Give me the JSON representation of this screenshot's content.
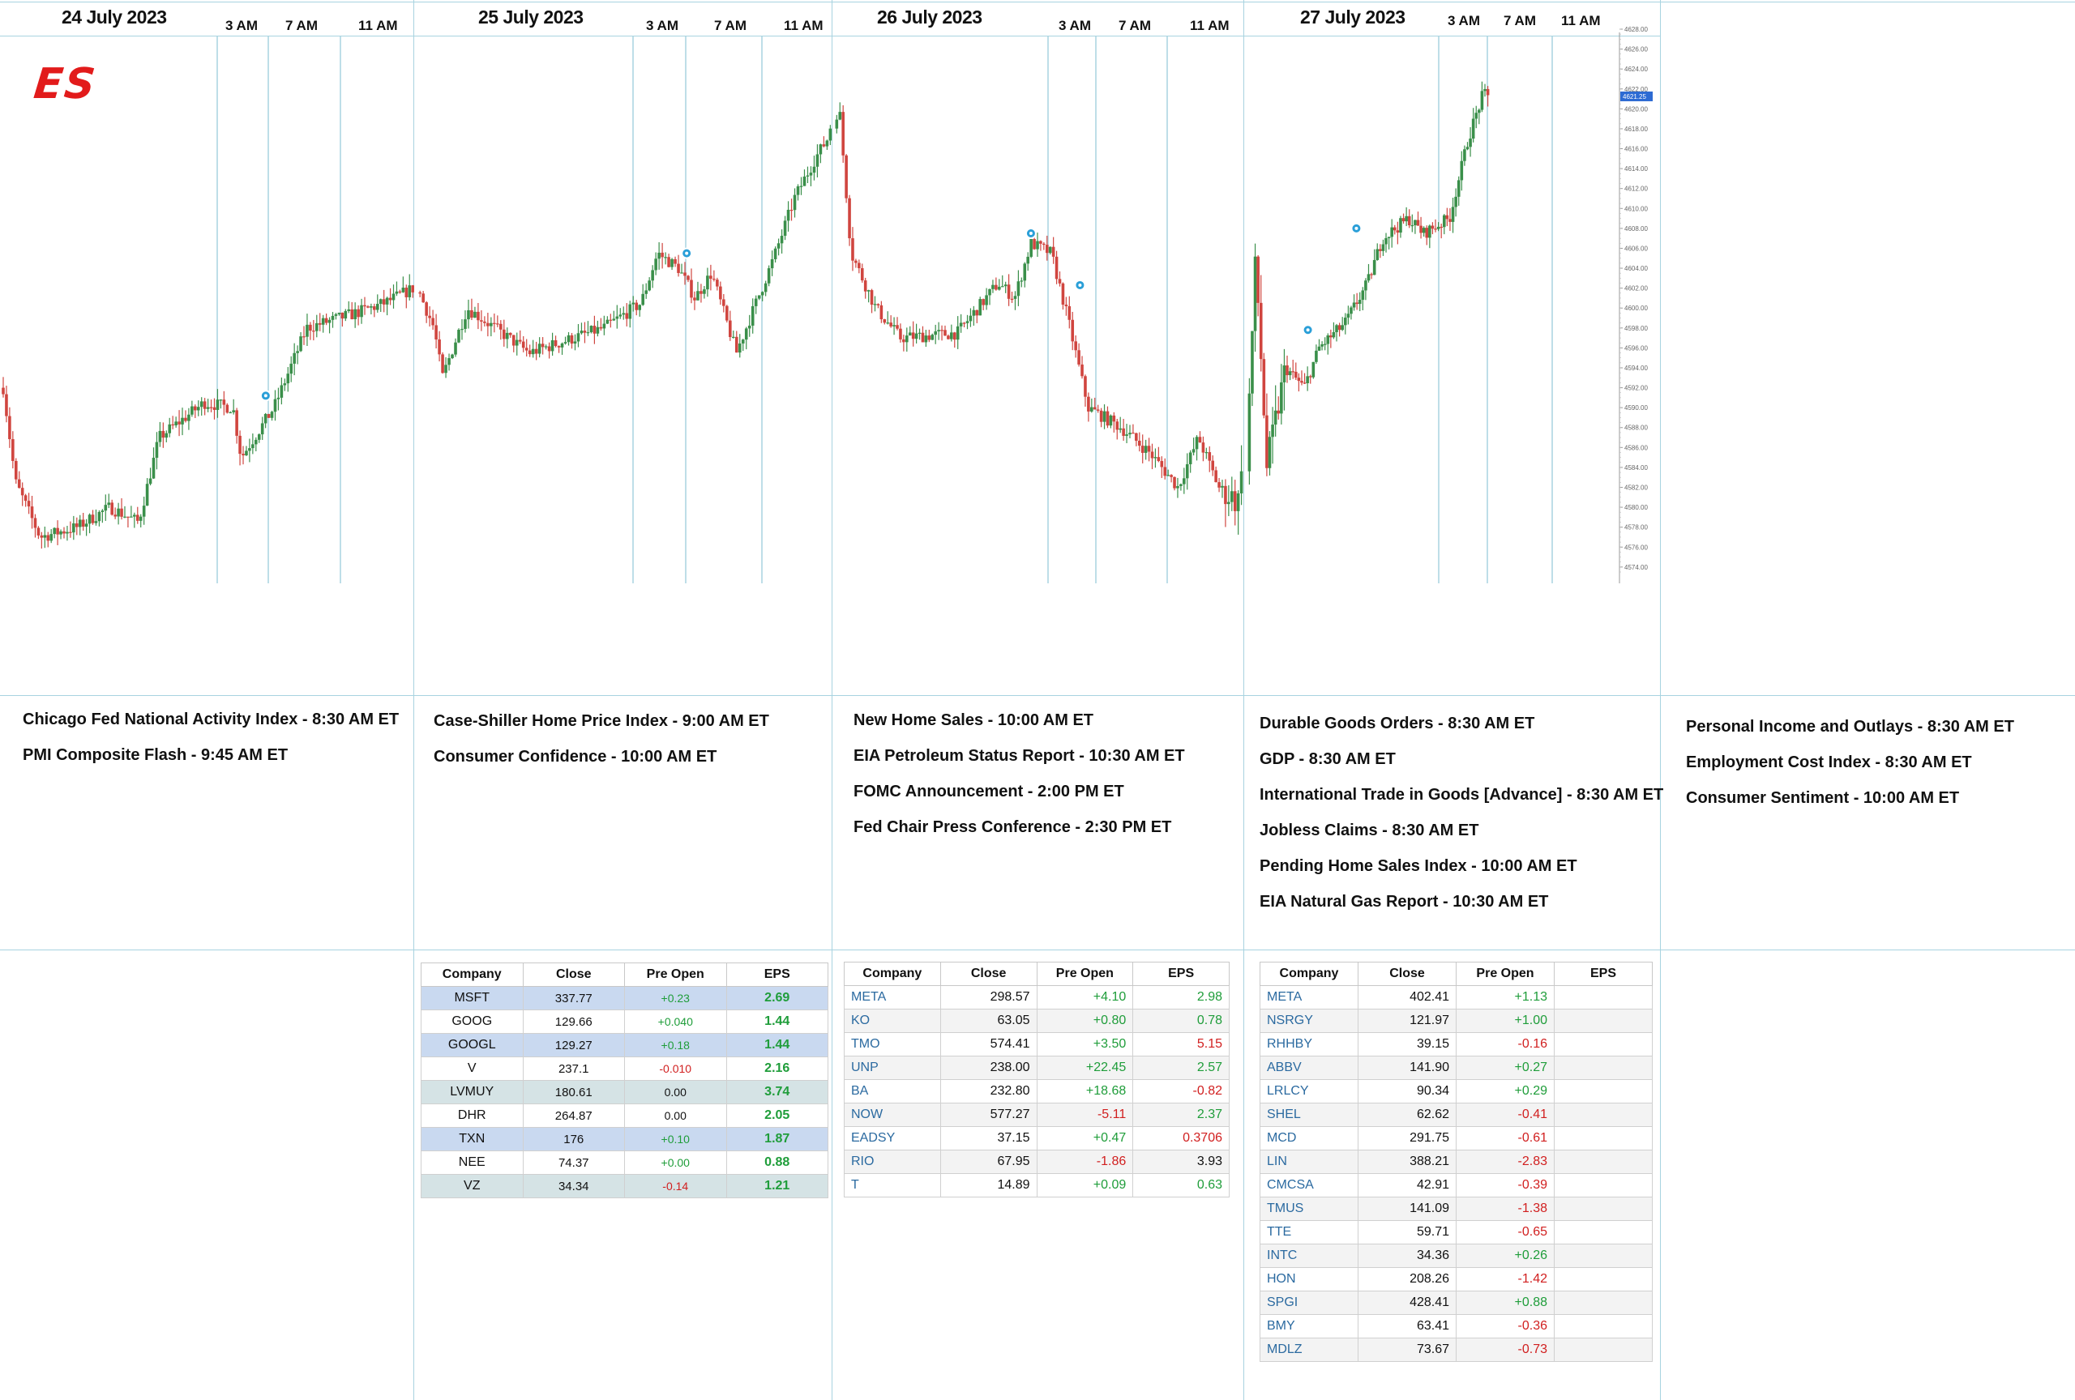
{
  "logo": "ES",
  "days": [
    {
      "label": "24 July 2023",
      "times": [
        "3 AM",
        "7 AM",
        "11 AM"
      ]
    },
    {
      "label": "25 July 2023",
      "times": [
        "3 AM",
        "7 AM",
        "11 AM"
      ]
    },
    {
      "label": "26 July 2023",
      "times": [
        "3 AM",
        "7 AM",
        "11 AM"
      ]
    },
    {
      "label": "27 July 2023",
      "times": [
        "3 AM",
        "7 AM",
        "11 AM"
      ]
    }
  ],
  "events": [
    [
      "Chicago Fed National Activity Index -  8:30 AM ET",
      "PMI Composite Flash - 9:45 AM ET"
    ],
    [
      "Case-Shiller Home Price Index - 9:00 AM ET",
      "Consumer Confidence - 10:00 AM ET"
    ],
    [
      "New Home Sales - 10:00 AM ET",
      "EIA Petroleum Status Report - 10:30 AM ET",
      "FOMC Announcement - 2:00 PM ET",
      "Fed Chair Press Conference - 2:30 PM ET"
    ],
    [
      "Durable Goods Orders - 8:30 AM ET",
      "GDP - 8:30 AM ET",
      "International Trade in Goods [Advance] - 8:30 AM ET",
      "Jobless Claims - 8:30 AM ET",
      "Pending Home Sales Index - 10:00 AM ET",
      "EIA Natural Gas Report - 10:30 AM ET"
    ],
    [
      "Personal Income and Outlays - 8:30 AM ET",
      "Employment Cost Index - 8:30 AM ET",
      "Consumer Sentiment - 10:00 AM ET"
    ]
  ],
  "tables": {
    "headers": [
      "Company",
      "Close",
      "Pre Open",
      "EPS"
    ],
    "day25": [
      {
        "company": "MSFT",
        "close": "337.77",
        "pre": "+0.23",
        "eps": "2.69"
      },
      {
        "company": "GOOG",
        "close": "129.66",
        "pre": "+0.040",
        "eps": "1.44"
      },
      {
        "company": "GOOGL",
        "close": "129.27",
        "pre": "+0.18",
        "eps": "1.44"
      },
      {
        "company": "V",
        "close": "237.1",
        "pre": "-0.010",
        "eps": "2.16"
      },
      {
        "company": "LVMUY",
        "close": "180.61",
        "pre": "0.00",
        "eps": "3.74"
      },
      {
        "company": "DHR",
        "close": "264.87",
        "pre": "0.00",
        "eps": "2.05"
      },
      {
        "company": "TXN",
        "close": "176",
        "pre": "+0.10",
        "eps": "1.87"
      },
      {
        "company": "NEE",
        "close": "74.37",
        "pre": "+0.00",
        "eps": "0.88"
      },
      {
        "company": "VZ",
        "close": "34.34",
        "pre": "-0.14",
        "eps": "1.21"
      }
    ],
    "day26": [
      {
        "company": "META",
        "close": "298.57",
        "pre": "+4.10",
        "eps": "2.98"
      },
      {
        "company": "KO",
        "close": "63.05",
        "pre": "+0.80",
        "eps": "0.78"
      },
      {
        "company": "TMO",
        "close": "574.41",
        "pre": "+3.50",
        "eps": "5.15"
      },
      {
        "company": "UNP",
        "close": "238.00",
        "pre": "+22.45",
        "eps": "2.57"
      },
      {
        "company": "BA",
        "close": "232.80",
        "pre": "+18.68",
        "eps": "-0.82"
      },
      {
        "company": "NOW",
        "close": "577.27",
        "pre": "-5.11",
        "eps": "2.37"
      },
      {
        "company": "EADSY",
        "close": "37.15",
        "pre": "+0.47",
        "eps": "0.3706"
      },
      {
        "company": "RIO",
        "close": "67.95",
        "pre": "-1.86",
        "eps": "3.93"
      },
      {
        "company": "T",
        "close": "14.89",
        "pre": "+0.09",
        "eps": "0.63"
      }
    ],
    "day27": [
      {
        "company": "META",
        "close": "402.41",
        "pre": "+1.13",
        "eps": ""
      },
      {
        "company": "NSRGY",
        "close": "121.97",
        "pre": "+1.00",
        "eps": ""
      },
      {
        "company": "RHHBY",
        "close": "39.15",
        "pre": "-0.16",
        "eps": ""
      },
      {
        "company": "ABBV",
        "close": "141.90",
        "pre": "+0.27",
        "eps": ""
      },
      {
        "company": "LRLCY",
        "close": "90.34",
        "pre": "+0.29",
        "eps": ""
      },
      {
        "company": "SHEL",
        "close": "62.62",
        "pre": "-0.41",
        "eps": ""
      },
      {
        "company": "MCD",
        "close": "291.75",
        "pre": "-0.61",
        "eps": ""
      },
      {
        "company": "LIN",
        "close": "388.21",
        "pre": "-2.83",
        "eps": ""
      },
      {
        "company": "CMCSA",
        "close": "42.91",
        "pre": "-0.39",
        "eps": ""
      },
      {
        "company": "TMUS",
        "close": "141.09",
        "pre": "-1.38",
        "eps": ""
      },
      {
        "company": "TTE",
        "close": "59.71",
        "pre": "-0.65",
        "eps": ""
      },
      {
        "company": "INTC",
        "close": "34.36",
        "pre": "+0.26",
        "eps": ""
      },
      {
        "company": "HON",
        "close": "208.26",
        "pre": "-1.42",
        "eps": ""
      },
      {
        "company": "SPGI",
        "close": "428.41",
        "pre": "+0.88",
        "eps": ""
      },
      {
        "company": "BMY",
        "close": "63.41",
        "pre": "-0.36",
        "eps": ""
      },
      {
        "company": "MDLZ",
        "close": "73.67",
        "pre": "-0.73",
        "eps": ""
      }
    ]
  },
  "colors": {
    "up": "#3a8f4a",
    "down": "#d0453f",
    "grid": "#a8d3e0",
    "marker": "#2a9fd8"
  },
  "chart_data": {
    "type": "candlestick",
    "title": "",
    "y_ticks": [
      "4574.00",
      "4576.00",
      "4578.00",
      "4580.00",
      "4582.00",
      "4584.00",
      "4586.00",
      "4588.00",
      "4590.00",
      "4592.00",
      "4594.00",
      "4596.00",
      "4598.00",
      "4600.00",
      "4602.00",
      "4604.00",
      "4606.00",
      "4608.00",
      "4610.00",
      "4612.00",
      "4614.00",
      "4616.00",
      "4618.00",
      "4620.00",
      "4622.00",
      "4624.00",
      "4626.00",
      "4628.00"
    ],
    "ylim": [
      4573.5,
      4628
    ],
    "last_price": "4621.25",
    "x_axis": "time (ET), 24–27 July 2023",
    "path_anchors": [
      {
        "t": 0.0,
        "p": 4592.0
      },
      {
        "t": 0.03,
        "p": 4582.5
      },
      {
        "t": 0.09,
        "p": 4577.0
      },
      {
        "t": 0.18,
        "p": 4578.0
      },
      {
        "t": 0.26,
        "p": 4580.0
      },
      {
        "t": 0.33,
        "p": 4578.5
      },
      {
        "t": 0.38,
        "p": 4587.0
      },
      {
        "t": 0.49,
        "p": 4590.5
      },
      {
        "t": 0.56,
        "p": 4590.0
      },
      {
        "t": 0.58,
        "p": 4585.0
      },
      {
        "t": 0.66,
        "p": 4590.0
      },
      {
        "t": 0.74,
        "p": 4598.0
      },
      {
        "t": 0.86,
        "p": 4599.5
      },
      {
        "t": 0.93,
        "p": 4600.5
      },
      {
        "t": 1.0,
        "p": 4602.0
      },
      {
        "t": 1.04,
        "p": 4598.0
      },
      {
        "t": 1.06,
        "p": 4593.0
      },
      {
        "t": 1.12,
        "p": 4600.0
      },
      {
        "t": 1.22,
        "p": 4597.0
      },
      {
        "t": 1.27,
        "p": 4595.5
      },
      {
        "t": 1.45,
        "p": 4598.0
      },
      {
        "t": 1.54,
        "p": 4600.5
      },
      {
        "t": 1.58,
        "p": 4605.5
      },
      {
        "t": 1.63,
        "p": 4604.0
      },
      {
        "t": 1.67,
        "p": 4601.0
      },
      {
        "t": 1.71,
        "p": 4603.5
      },
      {
        "t": 1.77,
        "p": 4595.5
      },
      {
        "t": 1.86,
        "p": 4605.0
      },
      {
        "t": 1.91,
        "p": 4611.0
      },
      {
        "t": 1.96,
        "p": 4615.0
      },
      {
        "t": 1.99,
        "p": 4617.0
      },
      {
        "t": 2.01,
        "p": 4620.5
      },
      {
        "t": 2.04,
        "p": 4605.5
      },
      {
        "t": 2.1,
        "p": 4600.0
      },
      {
        "t": 2.16,
        "p": 4597.0
      },
      {
        "t": 2.3,
        "p": 4597.5
      },
      {
        "t": 2.4,
        "p": 4602.5
      },
      {
        "t": 2.44,
        "p": 4601.0
      },
      {
        "t": 2.48,
        "p": 4606.5
      },
      {
        "t": 2.53,
        "p": 4605.5
      },
      {
        "t": 2.57,
        "p": 4599.0
      },
      {
        "t": 2.62,
        "p": 4590.0
      },
      {
        "t": 2.7,
        "p": 4588.0
      },
      {
        "t": 2.77,
        "p": 4585.5
      },
      {
        "t": 2.84,
        "p": 4582.0
      },
      {
        "t": 2.89,
        "p": 4587.0
      },
      {
        "t": 2.94,
        "p": 4582.0
      },
      {
        "t": 2.99,
        "p": 4580.5
      },
      {
        "t": 3.02,
        "p": 4605.0
      },
      {
        "t": 3.05,
        "p": 4584.0
      },
      {
        "t": 3.1,
        "p": 4594.0
      },
      {
        "t": 3.15,
        "p": 4592.0
      },
      {
        "t": 3.19,
        "p": 4596.0
      },
      {
        "t": 3.26,
        "p": 4598.5
      },
      {
        "t": 3.32,
        "p": 4602.5
      },
      {
        "t": 3.36,
        "p": 4607.0
      },
      {
        "t": 3.43,
        "p": 4609.0
      },
      {
        "t": 3.47,
        "p": 4607.5
      },
      {
        "t": 3.54,
        "p": 4609.0
      },
      {
        "t": 3.59,
        "p": 4617.0
      },
      {
        "t": 3.63,
        "p": 4621.5
      },
      {
        "t": 3.65,
        "p": 4621.0
      }
    ],
    "markers": [
      {
        "t": 0.64,
        "p": 4591.2
      },
      {
        "t": 1.65,
        "p": 4605.5
      },
      {
        "t": 2.48,
        "p": 4607.5
      },
      {
        "t": 2.6,
        "p": 4602.3
      },
      {
        "t": 3.16,
        "p": 4597.8
      },
      {
        "t": 3.29,
        "p": 4608.0
      }
    ]
  }
}
